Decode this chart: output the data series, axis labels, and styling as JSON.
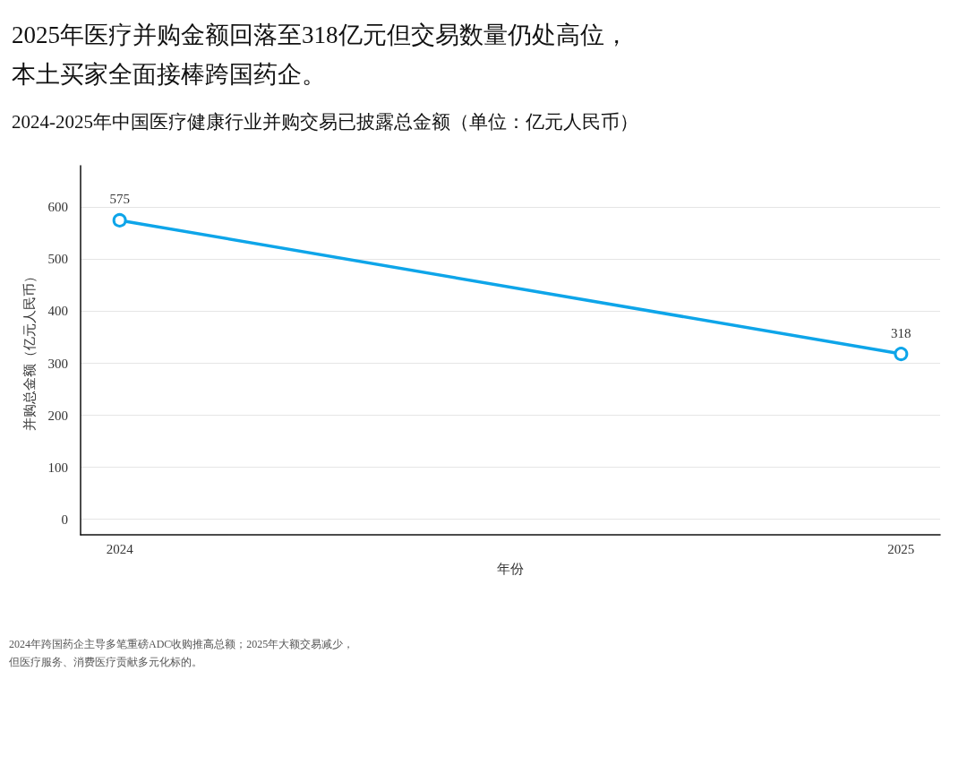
{
  "chart_data": {
    "type": "line",
    "title": "2025年医疗并购金额回落至318亿元但交易数量仍处高位，本土买家全面接棒跨国药企。",
    "subtitle": "2024-2025年中国医疗健康行业并购交易已披露总金额（单位：亿元人民币）",
    "xlabel": "年份",
    "ylabel": "并购总金额（亿元人民币）",
    "x": [
      2024,
      2025
    ],
    "series": [
      {
        "color": "#0ea5e9",
        "values": [
          575,
          318
        ]
      }
    ],
    "xlim": [
      2023.95,
      2025.05
    ],
    "xticks": [
      2024,
      2025
    ],
    "ylim": [
      -30,
      680
    ],
    "yticks": [
      0,
      100,
      200,
      300,
      400,
      500,
      600
    ],
    "grid": "y",
    "marker": "circle",
    "line_style": "solid",
    "data_labels": true,
    "annotations": [
      "2024年跨国药企主导多笔重磅ADC收购推高总额；2025年大额交易减少，",
      "但医疗服务、消费医疗贡献多元化标的。"
    ]
  }
}
